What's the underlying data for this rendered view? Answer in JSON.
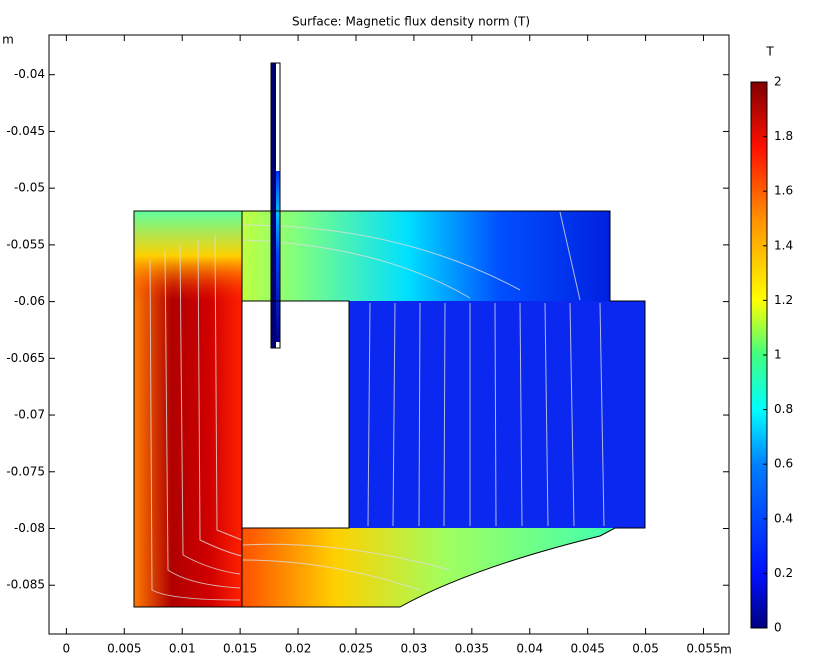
{
  "chart_data": {
    "type": "surface",
    "title": "Surface: Magnetic flux density norm (T)",
    "xunit": "m",
    "yunit": "m",
    "colorbar_label": "T",
    "xlim": [
      -0.0015,
      0.0572
    ],
    "ylim": [
      -0.0893,
      -0.0365
    ],
    "xticks": [
      0,
      0.005,
      0.01,
      0.015,
      0.02,
      0.025,
      0.03,
      0.035,
      0.04,
      0.045,
      0.05,
      0.055
    ],
    "yticks": [
      -0.04,
      -0.045,
      -0.05,
      -0.055,
      -0.06,
      -0.065,
      -0.07,
      -0.075,
      -0.08,
      -0.085
    ],
    "clim": [
      0,
      2
    ],
    "cticks": [
      0,
      0.2,
      0.4,
      0.6,
      0.8,
      1,
      1.2,
      1.4,
      1.6,
      1.8,
      2
    ]
  }
}
